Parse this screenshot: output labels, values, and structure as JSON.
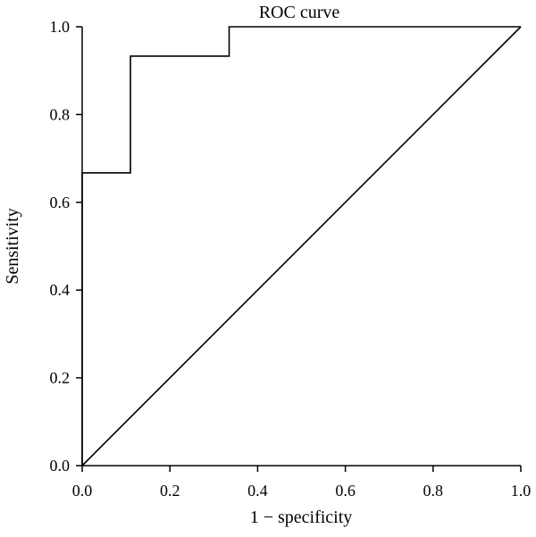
{
  "chart_data": {
    "type": "line",
    "title": "ROC curve",
    "xlabel": "1 − specificity",
    "ylabel": "Sensitivity",
    "xlim": [
      0.0,
      1.0
    ],
    "ylim": [
      0.0,
      1.0
    ],
    "x_ticks": [
      "0.0",
      "0.2",
      "0.4",
      "0.6",
      "0.8",
      "1.0"
    ],
    "y_ticks": [
      "0.0",
      "0.2",
      "0.4",
      "0.6",
      "0.8",
      "1.0"
    ],
    "grid": false,
    "series": [
      {
        "x": [
          0.0,
          0.0,
          0.11,
          0.11,
          0.335,
          0.335,
          1.0
        ],
        "y": [
          0.0,
          0.667,
          0.667,
          0.933,
          0.933,
          1.0,
          1.0
        ],
        "color": "#000000"
      },
      {
        "x": [
          0.0,
          1.0
        ],
        "y": [
          0.0,
          1.0
        ],
        "color": "#000000"
      }
    ]
  }
}
